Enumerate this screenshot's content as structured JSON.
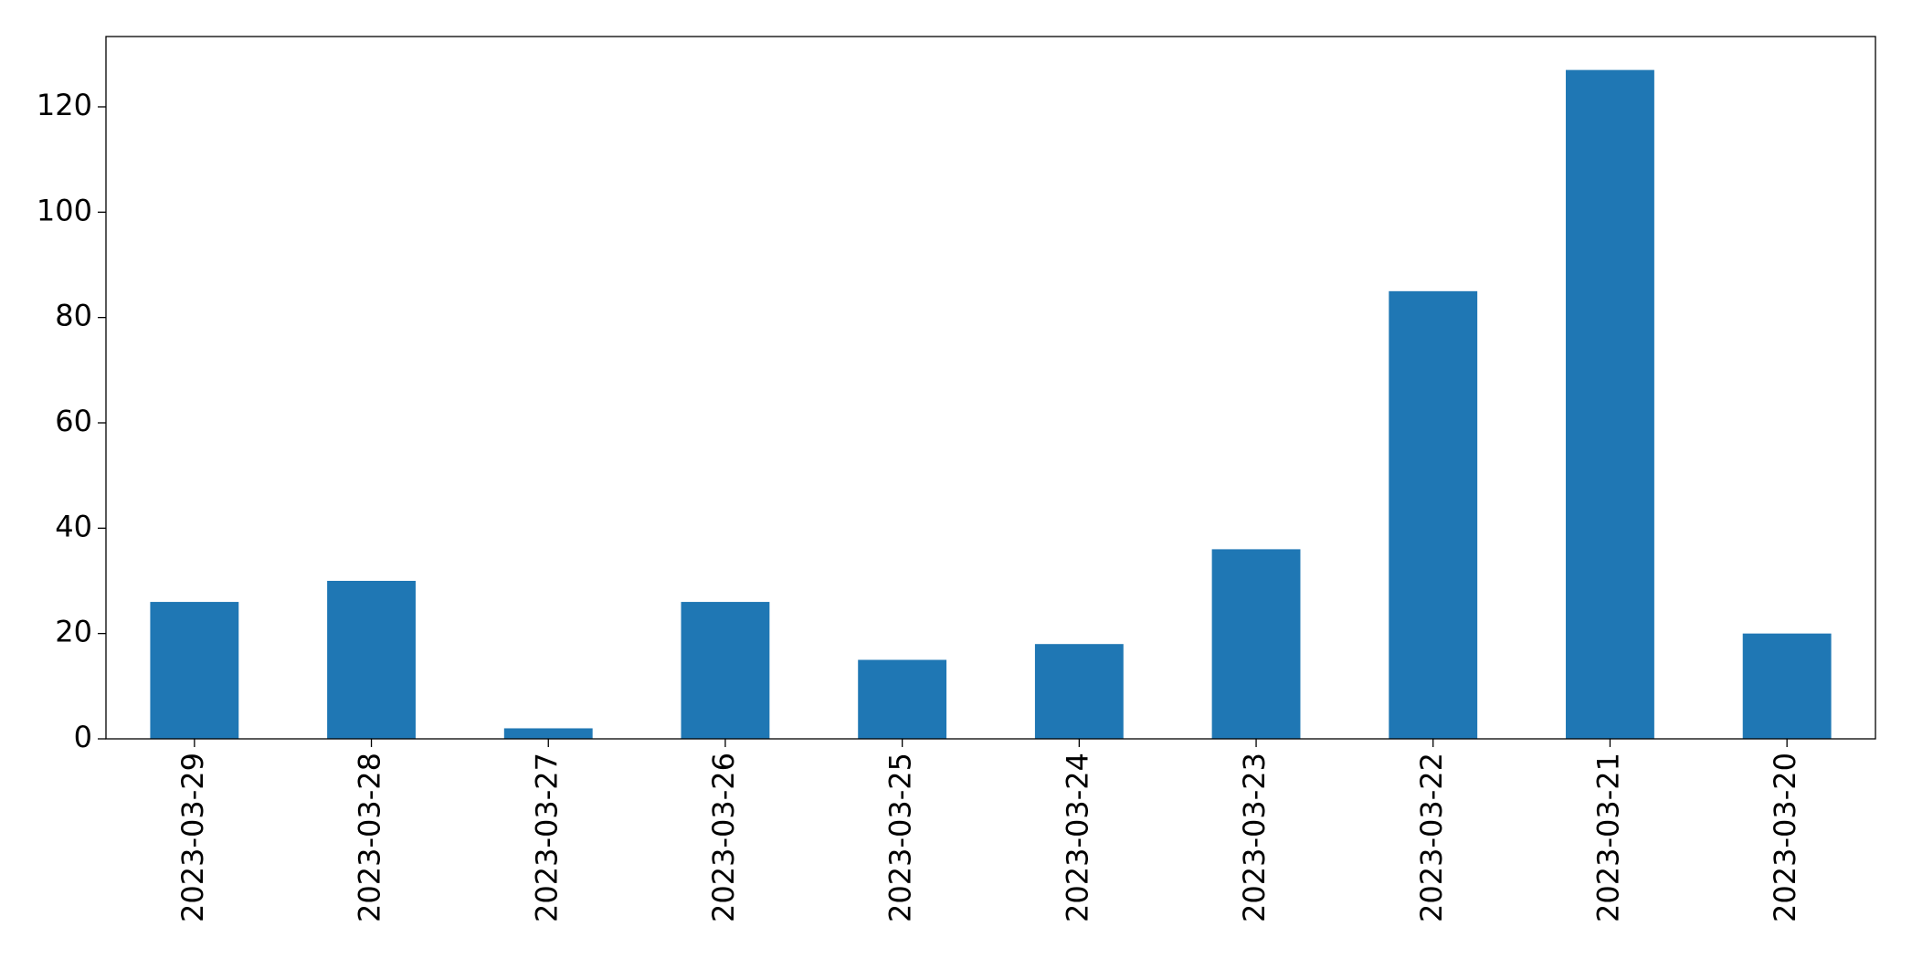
{
  "chart_data": {
    "type": "bar",
    "categories": [
      "2023-03-29",
      "2023-03-28",
      "2023-03-27",
      "2023-03-26",
      "2023-03-25",
      "2023-03-24",
      "2023-03-23",
      "2023-03-22",
      "2023-03-21",
      "2023-03-20"
    ],
    "values": [
      26,
      30,
      2,
      26,
      15,
      18,
      36,
      85,
      127,
      20
    ],
    "color": "#1f77b4",
    "ylim": [
      0,
      133.35
    ],
    "yticks": [
      0,
      20,
      40,
      60,
      80,
      100,
      120
    ],
    "grid": false
  }
}
